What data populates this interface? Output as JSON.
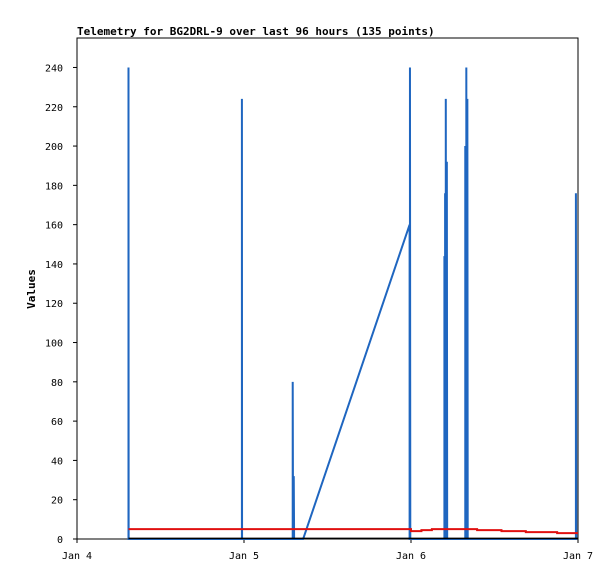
{
  "chart_data": {
    "type": "line",
    "title": "Telemetry for BG2DRL-9 over last 96 hours (135 points)",
    "xlabel": "",
    "ylabel": "Values",
    "x_ticks": [
      "Jan 4",
      "Jan 5",
      "Jan 6",
      "Jan 7"
    ],
    "xlim": [
      0,
      72
    ],
    "ylim": [
      0,
      255
    ],
    "y_ticks": [
      0,
      20,
      40,
      60,
      80,
      100,
      120,
      140,
      160,
      180,
      200,
      220,
      240
    ],
    "grid": false,
    "legend": "none",
    "series": [
      {
        "color": "#1f66c0",
        "points": [
          [
            7.4,
            0
          ],
          [
            7.4,
            240
          ],
          [
            7.42,
            0
          ],
          [
            23.7,
            0
          ],
          [
            23.7,
            224
          ],
          [
            23.72,
            0
          ],
          [
            31.0,
            0
          ],
          [
            31.0,
            80
          ],
          [
            31.05,
            0
          ],
          [
            31.15,
            0
          ],
          [
            31.15,
            32
          ],
          [
            31.2,
            0
          ],
          [
            32.5,
            0
          ],
          [
            47.8,
            160
          ],
          [
            47.8,
            0
          ],
          [
            47.85,
            0
          ],
          [
            47.85,
            240
          ],
          [
            47.9,
            0
          ],
          [
            52.8,
            0
          ],
          [
            52.8,
            144
          ],
          [
            52.85,
            0
          ],
          [
            52.9,
            0
          ],
          [
            52.9,
            176
          ],
          [
            52.95,
            0
          ],
          [
            53.0,
            0
          ],
          [
            53.0,
            224
          ],
          [
            53.05,
            0
          ],
          [
            53.15,
            0
          ],
          [
            53.15,
            192
          ],
          [
            53.2,
            0
          ],
          [
            55.8,
            0
          ],
          [
            55.8,
            200
          ],
          [
            55.85,
            0
          ],
          [
            55.95,
            0
          ],
          [
            55.95,
            240
          ],
          [
            56.0,
            0
          ],
          [
            56.1,
            0
          ],
          [
            56.1,
            224
          ],
          [
            56.15,
            0
          ],
          [
            56.3,
            0
          ],
          [
            71.7,
            0
          ],
          [
            71.7,
            176
          ],
          [
            71.75,
            0
          ]
        ]
      },
      {
        "color": "#e01010",
        "points": [
          [
            7.4,
            5
          ],
          [
            48.0,
            5
          ],
          [
            48.0,
            4
          ],
          [
            49.5,
            4
          ],
          [
            49.5,
            4.5
          ],
          [
            51.0,
            4.5
          ],
          [
            51.0,
            5
          ],
          [
            57.5,
            5
          ],
          [
            57.5,
            4.5
          ],
          [
            61.0,
            4.5
          ],
          [
            61.0,
            4
          ],
          [
            64.5,
            4
          ],
          [
            64.5,
            3.5
          ],
          [
            69.0,
            3.5
          ],
          [
            69.0,
            3
          ],
          [
            72.0,
            3
          ]
        ]
      },
      {
        "color": "#000000",
        "points": [
          [
            7.4,
            0.3
          ],
          [
            72.0,
            0.3
          ]
        ]
      }
    ]
  }
}
